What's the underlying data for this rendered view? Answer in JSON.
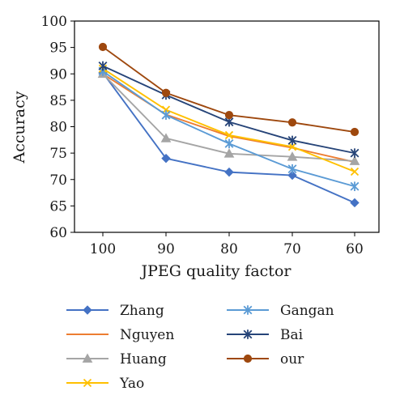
{
  "chart_data": {
    "type": "line",
    "x": [
      "100",
      "90",
      "80",
      "70",
      "60"
    ],
    "xlabel": "JPEG quality factor",
    "ylabel": "Accuracy",
    "ylim": [
      60,
      100
    ],
    "yticks": [
      60,
      65,
      70,
      75,
      80,
      85,
      90,
      95,
      100
    ],
    "grid": false,
    "legend_position": "bottom",
    "series": [
      {
        "name": "Zhang",
        "values": [
          90.2,
          74.0,
          71.4,
          70.8,
          65.6
        ],
        "color": "#4472c4",
        "marker": "diamond"
      },
      {
        "name": "Nguyen",
        "values": [
          90.0,
          82.3,
          78.2,
          76.0,
          73.3
        ],
        "color": "#ed7d31",
        "marker": "none"
      },
      {
        "name": "Huang",
        "values": [
          90.0,
          77.8,
          74.9,
          74.3,
          73.5
        ],
        "color": "#a5a5a5",
        "marker": "triangle"
      },
      {
        "name": "Yao",
        "values": [
          91.0,
          83.2,
          78.4,
          76.2,
          71.5
        ],
        "color": "#ffc000",
        "marker": "x"
      },
      {
        "name": "Gangan",
        "values": [
          90.5,
          82.2,
          76.8,
          72.0,
          68.7
        ],
        "color": "#5b9bd5",
        "marker": "asterisk"
      },
      {
        "name": "Bai",
        "values": [
          91.5,
          86.0,
          80.9,
          77.4,
          75.0
        ],
        "color": "#264478",
        "marker": "asterisk"
      },
      {
        "name": "our",
        "values": [
          95.1,
          86.4,
          82.2,
          80.8,
          79.0
        ],
        "color": "#9e480e",
        "marker": "circle"
      }
    ]
  }
}
